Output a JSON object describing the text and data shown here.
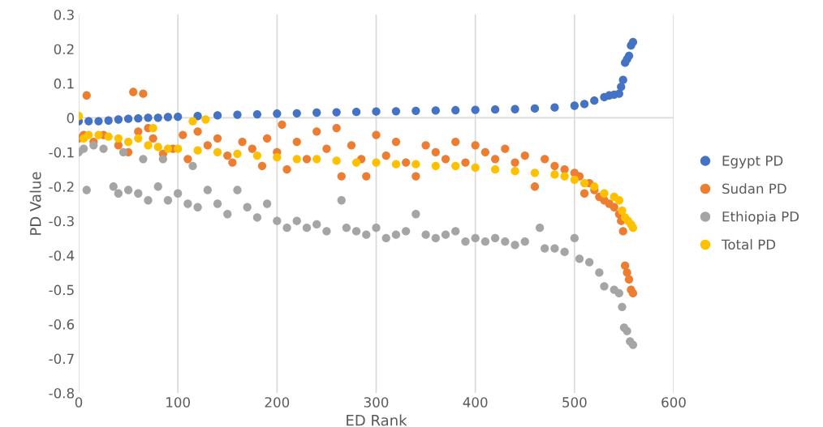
{
  "chart_data": {
    "type": "scatter",
    "xlabel": "ED Rank",
    "ylabel": "PD Value",
    "xlim": [
      0,
      600
    ],
    "xticks": [
      0,
      100,
      200,
      300,
      400,
      500,
      600
    ],
    "ylim": [
      -0.8,
      0.3
    ],
    "yticks": [
      -0.8,
      -0.7,
      -0.6,
      -0.5,
      -0.4,
      -0.3,
      -0.2,
      -0.1,
      0,
      0.1,
      0.2,
      0.3
    ],
    "grid": "x",
    "legend": "right",
    "marker": "circle",
    "ref_lines": [
      {
        "axis": "y",
        "value": 0,
        "color": "#d9d9d9"
      }
    ],
    "series": [
      {
        "name": "Egypt PD",
        "color": "#4472c4",
        "x": [
          0,
          10,
          20,
          30,
          40,
          50,
          60,
          70,
          80,
          90,
          100,
          120,
          140,
          160,
          180,
          200,
          220,
          240,
          260,
          280,
          300,
          320,
          340,
          360,
          380,
          400,
          420,
          440,
          460,
          480,
          500,
          510,
          520,
          530,
          535,
          540,
          545,
          547,
          549,
          551,
          553,
          555,
          557,
          559
        ],
        "values": [
          -0.01,
          -0.01,
          -0.01,
          -0.008,
          -0.005,
          -0.003,
          -0.002,
          0,
          0,
          0.002,
          0.003,
          0.005,
          0.007,
          0.009,
          0.01,
          0.012,
          0.013,
          0.015,
          0.016,
          0.017,
          0.018,
          0.019,
          0.02,
          0.021,
          0.022,
          0.023,
          0.024,
          0.025,
          0.027,
          0.03,
          0.035,
          0.04,
          0.05,
          0.06,
          0.065,
          0.067,
          0.07,
          0.09,
          0.11,
          0.16,
          0.17,
          0.18,
          0.21,
          0.22
        ]
      },
      {
        "name": "Sudan PD",
        "color": "#ed7d31",
        "x": [
          0,
          5,
          8,
          15,
          25,
          40,
          50,
          55,
          60,
          65,
          70,
          75,
          85,
          95,
          105,
          110,
          120,
          130,
          140,
          150,
          155,
          165,
          175,
          185,
          190,
          200,
          205,
          210,
          220,
          230,
          240,
          250,
          260,
          265,
          275,
          285,
          290,
          300,
          310,
          320,
          330,
          340,
          350,
          360,
          370,
          380,
          390,
          400,
          410,
          420,
          430,
          440,
          450,
          460,
          470,
          480,
          490,
          500,
          505,
          510,
          515,
          520,
          525,
          530,
          535,
          540,
          545,
          547,
          549,
          551,
          553,
          555,
          557,
          559
        ],
        "values": [
          -0.06,
          -0.05,
          0.065,
          -0.07,
          -0.05,
          -0.08,
          -0.1,
          0.075,
          -0.04,
          0.07,
          -0.03,
          -0.06,
          -0.105,
          -0.09,
          -0.05,
          -0.12,
          -0.04,
          -0.08,
          -0.06,
          -0.11,
          -0.13,
          -0.07,
          -0.09,
          -0.14,
          -0.06,
          -0.1,
          -0.02,
          -0.15,
          -0.07,
          -0.12,
          -0.04,
          -0.09,
          -0.03,
          -0.17,
          -0.08,
          -0.12,
          -0.17,
          -0.05,
          -0.11,
          -0.07,
          -0.13,
          -0.17,
          -0.08,
          -0.1,
          -0.12,
          -0.07,
          -0.13,
          -0.08,
          -0.1,
          -0.12,
          -0.09,
          -0.13,
          -0.11,
          -0.2,
          -0.12,
          -0.14,
          -0.15,
          -0.16,
          -0.17,
          -0.22,
          -0.19,
          -0.21,
          -0.23,
          -0.24,
          -0.25,
          -0.26,
          -0.28,
          -0.3,
          -0.33,
          -0.43,
          -0.45,
          -0.47,
          -0.5,
          -0.51
        ]
      },
      {
        "name": "Ethiopia PD",
        "color": "#a5a5a5",
        "x": [
          0,
          5,
          8,
          15,
          25,
          35,
          40,
          45,
          50,
          60,
          65,
          70,
          80,
          85,
          90,
          100,
          110,
          115,
          120,
          130,
          140,
          150,
          160,
          170,
          180,
          190,
          200,
          210,
          220,
          230,
          240,
          250,
          265,
          270,
          280,
          290,
          300,
          310,
          320,
          330,
          340,
          350,
          360,
          370,
          380,
          390,
          400,
          410,
          420,
          430,
          440,
          450,
          465,
          470,
          480,
          490,
          500,
          505,
          515,
          525,
          530,
          540,
          545,
          548,
          550,
          553,
          556,
          559
        ],
        "values": [
          -0.1,
          -0.09,
          -0.21,
          -0.08,
          -0.09,
          -0.2,
          -0.22,
          -0.1,
          -0.21,
          -0.22,
          -0.12,
          -0.24,
          -0.2,
          -0.12,
          -0.24,
          -0.22,
          -0.25,
          -0.14,
          -0.26,
          -0.21,
          -0.25,
          -0.28,
          -0.21,
          -0.26,
          -0.29,
          -0.25,
          -0.3,
          -0.32,
          -0.3,
          -0.32,
          -0.31,
          -0.33,
          -0.24,
          -0.32,
          -0.33,
          -0.34,
          -0.32,
          -0.35,
          -0.34,
          -0.33,
          -0.28,
          -0.34,
          -0.35,
          -0.34,
          -0.33,
          -0.36,
          -0.35,
          -0.36,
          -0.35,
          -0.36,
          -0.37,
          -0.36,
          -0.32,
          -0.38,
          -0.38,
          -0.39,
          -0.35,
          -0.41,
          -0.42,
          -0.45,
          -0.49,
          -0.5,
          -0.51,
          -0.55,
          -0.61,
          -0.62,
          -0.65,
          -0.66
        ]
      },
      {
        "name": "Total PD",
        "color": "#ffc000",
        "x": [
          0,
          5,
          10,
          20,
          30,
          40,
          50,
          60,
          70,
          75,
          80,
          90,
          100,
          115,
          120,
          128,
          140,
          160,
          180,
          200,
          220,
          240,
          260,
          280,
          300,
          320,
          340,
          360,
          380,
          400,
          420,
          440,
          460,
          480,
          490,
          500,
          510,
          520,
          530,
          540,
          545,
          548,
          551,
          554,
          557,
          559
        ],
        "values": [
          0.005,
          -0.06,
          -0.05,
          -0.05,
          -0.055,
          -0.06,
          -0.07,
          -0.06,
          -0.08,
          -0.03,
          -0.085,
          -0.09,
          -0.09,
          -0.01,
          -0.095,
          -0.005,
          -0.1,
          -0.105,
          -0.11,
          -0.115,
          -0.12,
          -0.12,
          -0.125,
          -0.13,
          -0.13,
          -0.135,
          -0.135,
          -0.14,
          -0.14,
          -0.145,
          -0.15,
          -0.155,
          -0.16,
          -0.165,
          -0.17,
          -0.18,
          -0.19,
          -0.2,
          -0.22,
          -0.23,
          -0.24,
          -0.27,
          -0.29,
          -0.3,
          -0.31,
          -0.32
        ]
      }
    ]
  }
}
